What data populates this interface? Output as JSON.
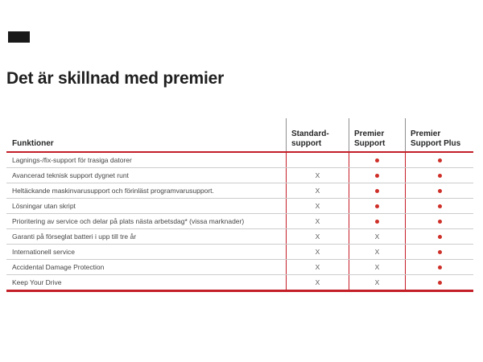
{
  "title": "Det är skillnad med premier",
  "colors": {
    "accent_red": "#C41E28",
    "dot_red": "#CE2F28",
    "row_line_gray": "#CCCCCC",
    "header_separator_gray": "#8F8F8F",
    "title_text": "#1F1F1F",
    "black_bar": "#191919"
  },
  "table": {
    "feature_header": "Funktioner",
    "columns": [
      {
        "id": "standard",
        "line1": "Standard-",
        "line2": "support"
      },
      {
        "id": "premier",
        "line1": "Premier",
        "line2": "Support"
      },
      {
        "id": "plus",
        "line1": "Premier",
        "line2": "Support Plus"
      }
    ],
    "mark_x": "X",
    "included_icon": "red-dot",
    "rows": [
      {
        "feature": "Lagnings-/fix-support för trasiga datorer",
        "standard": "",
        "premier": "dot",
        "plus": "dot"
      },
      {
        "feature": "Avancerad teknisk support dygnet runt",
        "standard": "x",
        "premier": "dot",
        "plus": "dot"
      },
      {
        "feature": "Heltäckande maskinvarusupport och förinläst programvarusupport.",
        "standard": "x",
        "premier": "dot",
        "plus": "dot"
      },
      {
        "feature": "Lösningar utan skript",
        "standard": "x",
        "premier": "dot",
        "plus": "dot"
      },
      {
        "feature": "Prioritering av service och delar på plats nästa arbetsdag* (vissa marknader)",
        "standard": "x",
        "premier": "dot",
        "plus": "dot"
      },
      {
        "feature": "Garanti på förseglat batteri i upp till tre år",
        "standard": "x",
        "premier": "x",
        "plus": "dot"
      },
      {
        "feature": "Internationell service",
        "standard": "x",
        "premier": "x",
        "plus": "dot"
      },
      {
        "feature": "Accidental Damage Protection",
        "standard": "x",
        "premier": "x",
        "plus": "dot"
      },
      {
        "feature": "Keep Your Drive",
        "standard": "x",
        "premier": "x",
        "plus": "dot"
      }
    ]
  }
}
